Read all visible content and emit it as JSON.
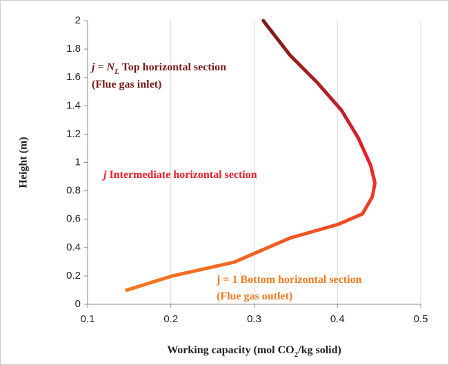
{
  "chart_data": {
    "type": "line",
    "x_label": [
      "Working capacity (mol CO",
      "2",
      "/kg solid)"
    ],
    "y_label": "Height (m)",
    "xlim": [
      0.1,
      0.5
    ],
    "xticks": [
      0.1,
      0.2,
      0.3,
      0.4,
      0.5
    ],
    "ylim": [
      0,
      2
    ],
    "yticks": [
      0,
      0.2,
      0.4,
      0.6,
      0.8,
      1,
      1.2,
      1.4,
      1.6,
      1.8,
      2
    ],
    "grid": "x",
    "series": [
      {
        "colors": [
          "#f47a20",
          "#e8202a",
          "#7a1a1a"
        ],
        "x": [
          0.147,
          0.202,
          0.276,
          0.343,
          0.401,
          0.43,
          0.442,
          0.445,
          0.44,
          0.425,
          0.405,
          0.376,
          0.343,
          0.311
        ],
        "values": [
          0.1,
          0.2,
          0.297,
          0.467,
          0.564,
          0.637,
          0.759,
          0.856,
          0.978,
          1.173,
          1.367,
          1.562,
          1.757,
          2.0
        ]
      }
    ],
    "annotations": [
      {
        "parts": [
          "j = N",
          "L",
          " Top horizontal section"
        ],
        "color": "#7a1a1a"
      },
      {
        "parts": [
          "(Flue gas inlet)"
        ],
        "color": "#7a1a1a"
      },
      {
        "parts": [
          "j",
          "  Intermediate horizontal section"
        ],
        "color": "#e8202a"
      },
      {
        "parts": [
          "j = 1  Bottom horizontal section"
        ],
        "color": "#f47a20"
      },
      {
        "parts": [
          "(Flue gas outlet)"
        ],
        "color": "#f47a20"
      }
    ]
  }
}
